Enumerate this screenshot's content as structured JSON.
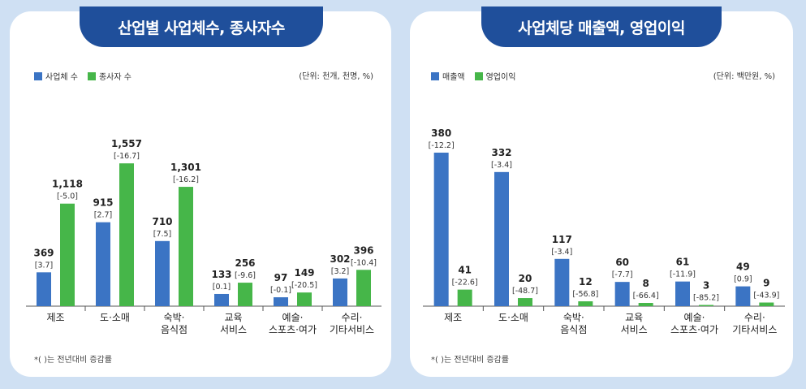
{
  "colors": {
    "blue": "#3b74c4",
    "green": "#46b649",
    "title_bg": "#1f4f9b",
    "bg": "#cfe0f3"
  },
  "chart_data": [
    {
      "type": "bar",
      "title": "산업별 사업체수, 종사자수",
      "unit": "(단위: 천개, 천명, %)",
      "note": "*(   )는 전년대비 증감률",
      "categories": [
        [
          "제조"
        ],
        [
          "도·소매"
        ],
        [
          "숙박·",
          "음식점"
        ],
        [
          "교육",
          "서비스"
        ],
        [
          "예술·",
          "스포츠·여가"
        ],
        [
          "수리·",
          "기타서비스"
        ]
      ],
      "ylim": [
        0,
        1700
      ],
      "series": [
        {
          "name": "사업체 수",
          "color": "#3b74c4",
          "values": [
            369,
            915,
            710,
            133,
            97,
            302
          ],
          "labels": [
            "369",
            "915",
            "710",
            "133",
            "97",
            "302"
          ],
          "changes": [
            "[3.7]",
            "[2.7]",
            "[7.5]",
            "[0.1]",
            "[-0.1]",
            "[3.2]"
          ]
        },
        {
          "name": "종사자 수",
          "color": "#46b649",
          "values": [
            1118,
            1557,
            1301,
            256,
            149,
            396
          ],
          "labels": [
            "1,118",
            "1,557",
            "1,301",
            "256",
            "149",
            "396"
          ],
          "changes": [
            "[-5.0]",
            "[-16.7]",
            "[-16.2]",
            "[-9.6]",
            "[-20.5]",
            "[-10.4]"
          ]
        }
      ]
    },
    {
      "type": "bar",
      "title": "사업체당 매출액, 영업이익",
      "unit": "(단위: 백만원, %)",
      "note": "*(   )는 전년대비 증감률",
      "categories": [
        [
          "제조"
        ],
        [
          "도·소매"
        ],
        [
          "숙박·",
          "음식점"
        ],
        [
          "교육",
          "서비스"
        ],
        [
          "예술·",
          "스포츠·여가"
        ],
        [
          "수리·",
          "기타서비스"
        ]
      ],
      "ylim": [
        0,
        400
      ],
      "series": [
        {
          "name": "매출액",
          "color": "#3b74c4",
          "values": [
            380,
            332,
            117,
            60,
            61,
            49
          ],
          "labels": [
            "380",
            "332",
            "117",
            "60",
            "61",
            "49"
          ],
          "changes": [
            "[-12.2]",
            "[-3.4]",
            "[-3.4]",
            "[-7.7]",
            "[-11.9]",
            "[0.9]"
          ]
        },
        {
          "name": "영업이익",
          "color": "#46b649",
          "values": [
            41,
            20,
            12,
            8,
            3,
            9
          ],
          "labels": [
            "41",
            "20",
            "12",
            "8",
            "3",
            "9"
          ],
          "changes": [
            "[-22.6]",
            "[-48.7]",
            "[-56.8]",
            "[-66.4]",
            "[-85.2]",
            "[-43.9]"
          ]
        }
      ]
    }
  ]
}
